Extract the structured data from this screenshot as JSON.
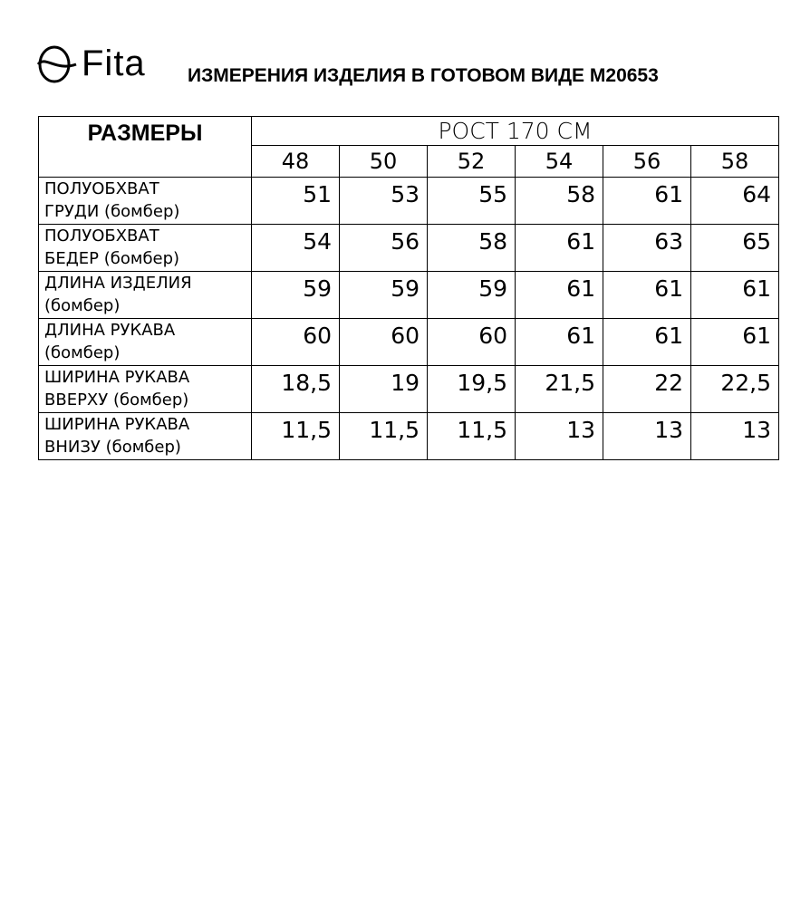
{
  "brand": {
    "logo_text": "Fita"
  },
  "title": "ИЗМЕРЕНИЯ ИЗДЕЛИЯ В ГОТОВОМ ВИДЕ М20653",
  "table": {
    "sizes_header": "РАЗМЕРЫ",
    "growth_header": "РОСТ 170 СМ",
    "sizes": [
      "48",
      "50",
      "52",
      "54",
      "56",
      "58"
    ],
    "rows": [
      {
        "label1": "ПОЛУОБХВАТ",
        "label2": "ГРУДИ (бомбер)",
        "values": [
          "51",
          "53",
          "55",
          "58",
          "61",
          "64"
        ]
      },
      {
        "label1": "ПОЛУОБХВАТ",
        "label2": "БЕДЕР (бомбер)",
        "values": [
          "54",
          "56",
          "58",
          "61",
          "63",
          "65"
        ]
      },
      {
        "label1": "ДЛИНА ИЗДЕЛИЯ",
        "label2": "(бомбер)",
        "values": [
          "59",
          "59",
          "59",
          "61",
          "61",
          "61"
        ]
      },
      {
        "label1": "ДЛИНА РУКАВА",
        "label2": "(бомбер)",
        "values": [
          "60",
          "60",
          "60",
          "61",
          "61",
          "61"
        ]
      },
      {
        "label1": "ШИРИНА РУКАВА",
        "label2": "ВВЕРХУ (бомбер)",
        "values": [
          "18,5",
          "19",
          "19,5",
          "21,5",
          "22",
          "22,5"
        ]
      },
      {
        "label1": "ШИРИНА РУКАВА",
        "label2": "ВНИЗУ (бомбер)",
        "values": [
          "11,5",
          "11,5",
          "11,5",
          "13",
          "13",
          "13"
        ]
      }
    ]
  }
}
